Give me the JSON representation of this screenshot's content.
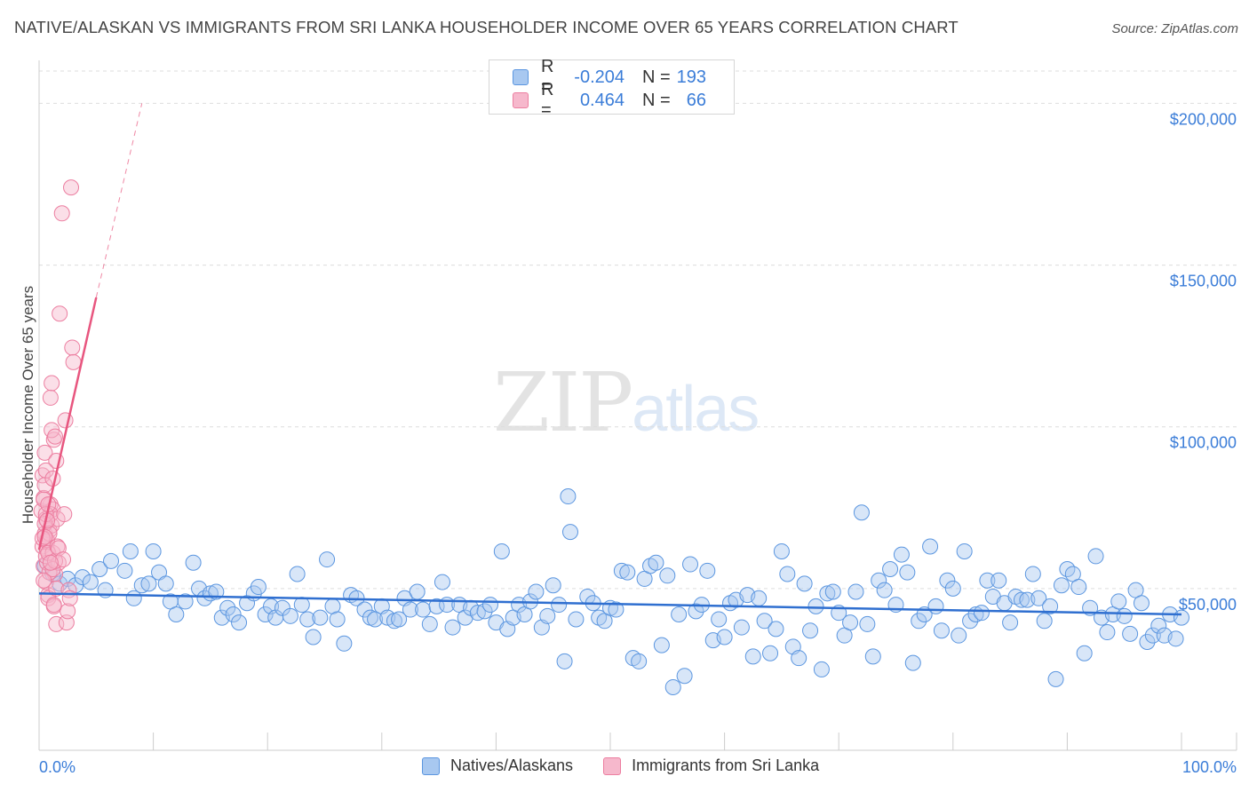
{
  "header": {
    "title": "NATIVE/ALASKAN VS IMMIGRANTS FROM SRI LANKA HOUSEHOLDER INCOME OVER 65 YEARS CORRELATION CHART",
    "source": "Source: ZipAtlas.com"
  },
  "watermark": {
    "zip": "ZIP",
    "atlas": "atlas"
  },
  "legend_top": {
    "rows": [
      {
        "r_label": "R =",
        "r_value": "-0.204",
        "n_label": "N =",
        "n_value": "193"
      },
      {
        "r_label": "R =",
        "r_value": "0.464",
        "n_label": "N =",
        "n_value": "66"
      }
    ]
  },
  "legend_bottom": {
    "items": [
      "Natives/Alaskans",
      "Immigrants from Sri Lanka"
    ]
  },
  "colors": {
    "blue_fill": "#a8c8f0",
    "blue_stroke": "#5b96e0",
    "blue_line": "#2f6fd0",
    "pink_fill": "#f6b8cc",
    "pink_stroke": "#ec7ea0",
    "pink_line": "#e8567f",
    "tick_text": "#3b7dd8",
    "grid": "#dddddd"
  },
  "chart_data": {
    "type": "scatter",
    "title": "NATIVE/ALASKAN VS IMMIGRANTS FROM SRI LANKA HOUSEHOLDER INCOME OVER 65 YEARS CORRELATION CHART",
    "xlabel": "",
    "ylabel": "Householder Income Over 65 years",
    "xlim": [
      0,
      100
    ],
    "ylim": [
      0,
      210000
    ],
    "x_tick_labels": [
      "0.0%",
      "100.0%"
    ],
    "y_ticks": [
      50000,
      100000,
      150000,
      200000
    ],
    "y_tick_labels": [
      "$50,000",
      "$100,000",
      "$150,000",
      "$200,000"
    ],
    "legend_position": "top-center",
    "series": [
      {
        "name": "Natives/Alaskans",
        "color": "#a8c8f0",
        "R": -0.204,
        "N": 193,
        "trend": {
          "x": [
            0,
            100
          ],
          "y": [
            48500,
            42000
          ]
        },
        "points": [
          [
            0.5,
            57000
          ],
          [
            1.2,
            54500
          ],
          [
            1.8,
            51500
          ],
          [
            2.5,
            53000
          ],
          [
            3.2,
            51000
          ],
          [
            3.8,
            53500
          ],
          [
            4.5,
            52000
          ],
          [
            5.3,
            56000
          ],
          [
            5.8,
            49500
          ],
          [
            6.3,
            58500
          ],
          [
            7.5,
            55500
          ],
          [
            8.0,
            61500
          ],
          [
            8.3,
            47000
          ],
          [
            9.0,
            51000
          ],
          [
            9.6,
            51500
          ],
          [
            10.0,
            61500
          ],
          [
            10.5,
            55000
          ],
          [
            11.1,
            51500
          ],
          [
            11.5,
            46000
          ],
          [
            12.0,
            42000
          ],
          [
            12.8,
            46000
          ],
          [
            13.5,
            58000
          ],
          [
            14.0,
            50000
          ],
          [
            14.5,
            47000
          ],
          [
            15.0,
            48500
          ],
          [
            15.5,
            49000
          ],
          [
            16.0,
            41000
          ],
          [
            16.5,
            44000
          ],
          [
            17.0,
            42000
          ],
          [
            17.5,
            39500
          ],
          [
            18.2,
            45500
          ],
          [
            18.8,
            48500
          ],
          [
            19.2,
            50500
          ],
          [
            19.8,
            42000
          ],
          [
            20.3,
            44500
          ],
          [
            20.7,
            41000
          ],
          [
            21.3,
            44000
          ],
          [
            22.0,
            41500
          ],
          [
            22.6,
            54500
          ],
          [
            23.0,
            45000
          ],
          [
            23.5,
            40500
          ],
          [
            24.0,
            35000
          ],
          [
            24.6,
            41000
          ],
          [
            25.2,
            59000
          ],
          [
            25.7,
            44500
          ],
          [
            26.1,
            40500
          ],
          [
            26.7,
            33000
          ],
          [
            27.3,
            48000
          ],
          [
            27.8,
            47000
          ],
          [
            28.5,
            43500
          ],
          [
            29.0,
            41000
          ],
          [
            29.4,
            40500
          ],
          [
            30.0,
            44500
          ],
          [
            30.5,
            41000
          ],
          [
            31.1,
            40000
          ],
          [
            31.5,
            40500
          ],
          [
            32.0,
            47000
          ],
          [
            32.5,
            43500
          ],
          [
            33.1,
            49000
          ],
          [
            33.6,
            43500
          ],
          [
            34.2,
            39000
          ],
          [
            34.8,
            44500
          ],
          [
            35.3,
            52000
          ],
          [
            35.7,
            45000
          ],
          [
            36.2,
            38000
          ],
          [
            36.8,
            45000
          ],
          [
            37.3,
            41000
          ],
          [
            37.8,
            44000
          ],
          [
            38.4,
            42500
          ],
          [
            39.0,
            43000
          ],
          [
            39.5,
            45000
          ],
          [
            40.0,
            39500
          ],
          [
            40.5,
            61500
          ],
          [
            41.0,
            37500
          ],
          [
            41.5,
            41000
          ],
          [
            42.0,
            45000
          ],
          [
            42.5,
            42000
          ],
          [
            43.0,
            46000
          ],
          [
            43.5,
            49000
          ],
          [
            44.0,
            38000
          ],
          [
            44.5,
            41500
          ],
          [
            45.0,
            51000
          ],
          [
            45.5,
            45000
          ],
          [
            46.0,
            27500
          ],
          [
            46.3,
            78500
          ],
          [
            46.5,
            67500
          ],
          [
            47.0,
            40500
          ],
          [
            48.0,
            47500
          ],
          [
            48.5,
            45500
          ],
          [
            49.0,
            41000
          ],
          [
            49.5,
            40000
          ],
          [
            50.0,
            44000
          ],
          [
            50.5,
            43500
          ],
          [
            51.0,
            55500
          ],
          [
            51.5,
            55000
          ],
          [
            52.0,
            28500
          ],
          [
            52.5,
            27500
          ],
          [
            53.0,
            53000
          ],
          [
            53.5,
            57000
          ],
          [
            54.0,
            58000
          ],
          [
            54.5,
            32500
          ],
          [
            55.0,
            54000
          ],
          [
            55.5,
            19500
          ],
          [
            56.0,
            42000
          ],
          [
            56.5,
            23000
          ],
          [
            57.0,
            57500
          ],
          [
            57.5,
            43000
          ],
          [
            58.0,
            45000
          ],
          [
            58.5,
            55500
          ],
          [
            59.0,
            34000
          ],
          [
            59.5,
            40500
          ],
          [
            60.0,
            35000
          ],
          [
            60.5,
            45500
          ],
          [
            61.0,
            46500
          ],
          [
            61.5,
            38000
          ],
          [
            62.0,
            48000
          ],
          [
            62.5,
            29000
          ],
          [
            63.0,
            47000
          ],
          [
            63.5,
            40000
          ],
          [
            64.0,
            30000
          ],
          [
            64.5,
            37500
          ],
          [
            65.0,
            61500
          ],
          [
            65.5,
            54500
          ],
          [
            66.0,
            32000
          ],
          [
            66.5,
            28500
          ],
          [
            67.0,
            51500
          ],
          [
            67.5,
            37000
          ],
          [
            68.0,
            44500
          ],
          [
            68.5,
            25000
          ],
          [
            69.0,
            48500
          ],
          [
            69.5,
            49000
          ],
          [
            70.0,
            42500
          ],
          [
            70.5,
            35500
          ],
          [
            71.0,
            39500
          ],
          [
            71.5,
            49000
          ],
          [
            72.0,
            73500
          ],
          [
            72.5,
            39000
          ],
          [
            73.0,
            29000
          ],
          [
            73.5,
            52500
          ],
          [
            74.0,
            49500
          ],
          [
            74.5,
            56000
          ],
          [
            75.0,
            45000
          ],
          [
            75.5,
            60500
          ],
          [
            76.0,
            55000
          ],
          [
            76.5,
            27000
          ],
          [
            77.0,
            40000
          ],
          [
            77.5,
            42000
          ],
          [
            78.0,
            63000
          ],
          [
            78.5,
            44500
          ],
          [
            79.0,
            37000
          ],
          [
            79.5,
            52500
          ],
          [
            80.0,
            50000
          ],
          [
            80.5,
            35500
          ],
          [
            81.0,
            61500
          ],
          [
            81.5,
            40000
          ],
          [
            82.0,
            42000
          ],
          [
            82.5,
            42500
          ],
          [
            83.0,
            52500
          ],
          [
            83.5,
            47500
          ],
          [
            84.0,
            52500
          ],
          [
            84.5,
            45500
          ],
          [
            85.0,
            39500
          ],
          [
            85.5,
            47500
          ],
          [
            86.0,
            46500
          ],
          [
            86.5,
            46500
          ],
          [
            87.0,
            54500
          ],
          [
            87.5,
            47000
          ],
          [
            88.0,
            40000
          ],
          [
            88.5,
            44500
          ],
          [
            89.0,
            22000
          ],
          [
            89.5,
            51000
          ],
          [
            90.0,
            56000
          ],
          [
            90.5,
            54500
          ],
          [
            91.0,
            50500
          ],
          [
            91.5,
            30000
          ],
          [
            92.0,
            44000
          ],
          [
            92.5,
            60000
          ],
          [
            93.0,
            41000
          ],
          [
            93.5,
            36500
          ],
          [
            94.0,
            42000
          ],
          [
            94.5,
            46000
          ],
          [
            95.0,
            41500
          ],
          [
            95.5,
            36000
          ],
          [
            96.0,
            49500
          ],
          [
            96.5,
            45500
          ],
          [
            97.0,
            33500
          ],
          [
            97.5,
            35500
          ],
          [
            98.0,
            38500
          ],
          [
            98.5,
            35500
          ],
          [
            99.0,
            42000
          ],
          [
            99.5,
            34500
          ],
          [
            100.0,
            41000
          ]
        ]
      },
      {
        "name": "Immigrants from Sri Lanka",
        "color": "#f6b8cc",
        "R": 0.464,
        "N": 66,
        "trend": {
          "x": [
            0,
            5
          ],
          "y": [
            62000,
            140000
          ]
        },
        "trend_dashed": {
          "x": [
            5,
            9
          ],
          "y": [
            140000,
            200000
          ]
        },
        "points": [
          [
            0.2,
            74000
          ],
          [
            0.3,
            63000
          ],
          [
            0.4,
            57000
          ],
          [
            0.5,
            67000
          ],
          [
            0.6,
            71500
          ],
          [
            0.7,
            62000
          ],
          [
            0.8,
            48000
          ],
          [
            0.3,
            85000
          ],
          [
            0.5,
            92000
          ],
          [
            0.6,
            52000
          ],
          [
            0.7,
            58000
          ],
          [
            0.8,
            47000
          ],
          [
            0.9,
            68000
          ],
          [
            1.0,
            76000
          ],
          [
            1.1,
            69500
          ],
          [
            1.2,
            74500
          ],
          [
            1.3,
            96000
          ],
          [
            1.4,
            54500
          ],
          [
            1.5,
            50000
          ],
          [
            0.4,
            78000
          ],
          [
            0.5,
            82000
          ],
          [
            0.6,
            60000
          ],
          [
            0.7,
            64500
          ],
          [
            0.9,
            55000
          ],
          [
            1.0,
            73000
          ],
          [
            1.1,
            99000
          ],
          [
            1.2,
            61000
          ],
          [
            1.3,
            44500
          ],
          [
            1.4,
            97000
          ],
          [
            1.5,
            89500
          ],
          [
            1.6,
            71500
          ],
          [
            1.7,
            58000
          ],
          [
            0.4,
            77500
          ],
          [
            0.5,
            70000
          ],
          [
            0.6,
            86500
          ],
          [
            0.7,
            65000
          ],
          [
            0.8,
            61000
          ],
          [
            0.9,
            67000
          ],
          [
            1.0,
            109000
          ],
          [
            1.1,
            113500
          ],
          [
            1.2,
            56000
          ],
          [
            1.3,
            45000
          ],
          [
            1.4,
            58500
          ],
          [
            1.5,
            39000
          ],
          [
            1.6,
            63000
          ],
          [
            1.7,
            62500
          ],
          [
            1.8,
            135000
          ],
          [
            2.0,
            166000
          ],
          [
            2.1,
            59000
          ],
          [
            2.2,
            73000
          ],
          [
            2.3,
            102000
          ],
          [
            2.4,
            39500
          ],
          [
            2.5,
            43000
          ],
          [
            2.6,
            49500
          ],
          [
            2.7,
            47000
          ],
          [
            2.8,
            174000
          ],
          [
            2.9,
            124500
          ],
          [
            3.0,
            120000
          ],
          [
            0.3,
            65500
          ],
          [
            0.5,
            66000
          ],
          [
            0.6,
            73000
          ],
          [
            0.8,
            76000
          ],
          [
            1.0,
            58000
          ],
          [
            1.2,
            84000
          ],
          [
            0.4,
            52500
          ],
          [
            0.7,
            71000
          ]
        ]
      }
    ]
  }
}
